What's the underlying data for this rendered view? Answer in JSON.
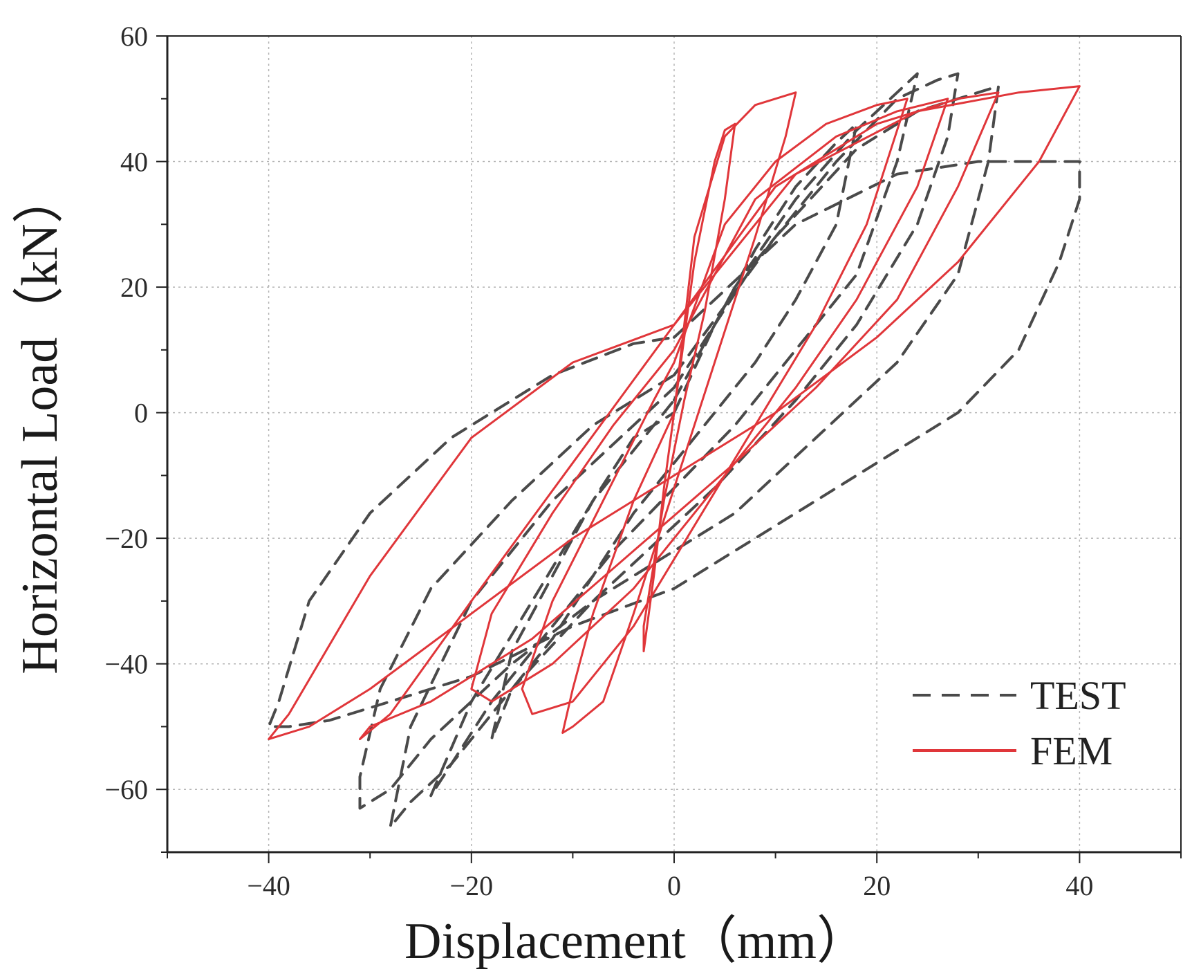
{
  "chart_data": {
    "type": "line",
    "title": "",
    "xlabel": "Displacement（mm）",
    "ylabel": "Horizontal Load（kN）",
    "xlim": [
      -50,
      50
    ],
    "ylim": [
      -70,
      60
    ],
    "xticks": [
      -40,
      -20,
      0,
      20,
      40
    ],
    "yticks": [
      60,
      40,
      20,
      0,
      -20,
      -40,
      -60
    ],
    "xtick_labels": [
      "−40",
      "−20",
      "0",
      "20",
      "40"
    ],
    "ytick_labels": [
      "60",
      "40",
      "20",
      "0",
      "−20",
      "−40",
      "−60"
    ],
    "grid": true,
    "legend_position": "bottom-right",
    "series": [
      {
        "name": "TEST",
        "style": "dashed",
        "color": "#4a4a4a",
        "loops": [
          {
            "x": [
              0,
              4,
              8,
              12,
              16,
              18,
              16,
              12,
              8,
              4,
              0,
              -4,
              -8,
              -12,
              -16,
              -18,
              -16,
              -12,
              -8,
              -4,
              0
            ],
            "y": [
              0,
              14,
              26,
              36,
              43,
              46,
              30,
              18,
              8,
              0,
              -8,
              -16,
              -26,
              -36,
              -44,
              -52,
              -38,
              -26,
              -14,
              -4,
              0
            ]
          },
          {
            "x": [
              0,
              6,
              12,
              18,
              22,
              24,
              22,
              18,
              12,
              6,
              0,
              -6,
              -12,
              -18,
              -22,
              -24,
              -20,
              -14,
              -8,
              0
            ],
            "y": [
              2,
              20,
              34,
              45,
              51,
              54,
              40,
              22,
              10,
              -2,
              -12,
              -22,
              -34,
              -46,
              -56,
              -61,
              -46,
              -30,
              -14,
              2
            ]
          },
          {
            "x": [
              0,
              8,
              16,
              22,
              26,
              28,
              27,
              24,
              18,
              12,
              4,
              0,
              -8,
              -16,
              -22,
              -26,
              -28,
              -26,
              -20,
              -12,
              -4,
              0
            ],
            "y": [
              4,
              24,
              40,
              50,
              53,
              54,
              44,
              30,
              14,
              2,
              -12,
              -18,
              -30,
              -44,
              -56,
              -62,
              -66,
              -50,
              -30,
              -14,
              -2,
              4
            ]
          },
          {
            "x": [
              0,
              10,
              18,
              24,
              28,
              32,
              31,
              28,
              22,
              14,
              6,
              0,
              -8,
              -16,
              -24,
              -28,
              -31,
              -31,
              -29,
              -24,
              -16,
              -8,
              0
            ],
            "y": [
              6,
              28,
              42,
              48,
              50,
              52,
              40,
              22,
              8,
              -4,
              -16,
              -22,
              -30,
              -40,
              -52,
              -60,
              -63,
              -58,
              -44,
              -28,
              -14,
              -2,
              6
            ]
          },
          {
            "x": [
              0,
              12,
              22,
              30,
              36,
              40,
              40,
              38,
              34,
              28,
              20,
              10,
              0,
              -10,
              -20,
              -28,
              -34,
              -38,
              -40,
              -39,
              -36,
              -30,
              -22,
              -12,
              -4,
              0
            ],
            "y": [
              12,
              30,
              38,
              40,
              40,
              40,
              34,
              24,
              10,
              0,
              -8,
              -18,
              -28,
              -34,
              -42,
              -46,
              -49,
              -50,
              -50,
              -46,
              -30,
              -16,
              -4,
              6,
              11,
              12
            ]
          }
        ]
      },
      {
        "name": "FEM",
        "style": "solid",
        "color": "#e0363a",
        "loops": [
          {
            "x": [
              0,
              2,
              4,
              5,
              6,
              5,
              3,
              1,
              0,
              -1,
              -2,
              -3,
              -3,
              -2,
              -1,
              0
            ],
            "y": [
              0,
              24,
              40,
              45,
              46,
              34,
              16,
              2,
              -6,
              -14,
              -24,
              -34,
              -38,
              -26,
              -12,
              0
            ]
          },
          {
            "x": [
              0,
              2,
              5,
              8,
              12,
              11,
              8,
              4,
              0,
              -4,
              -7,
              -10,
              -11,
              -10,
              -8,
              -4,
              0
            ],
            "y": [
              0,
              28,
              44,
              49,
              51,
              44,
              28,
              8,
              -12,
              -32,
              -46,
              -50,
              -51,
              -44,
              -32,
              -14,
              0
            ]
          },
          {
            "x": [
              0,
              5,
              10,
              15,
              20,
              23,
              19,
              14,
              8,
              2,
              -4,
              -10,
              -14,
              -15,
              -12,
              -7,
              -2,
              0
            ],
            "y": [
              8,
              30,
              40,
              46,
              49,
              50,
              30,
              14,
              -2,
              -18,
              -34,
              -46,
              -48,
              -44,
              -30,
              -14,
              2,
              8
            ]
          },
          {
            "x": [
              0,
              8,
              16,
              22,
              27,
              24,
              18,
              12,
              4,
              -4,
              -12,
              -18,
              -20,
              -18,
              -12,
              -6,
              0
            ],
            "y": [
              10,
              34,
              44,
              48,
              50,
              36,
              18,
              4,
              -12,
              -28,
              -40,
              -46,
              -44,
              -32,
              -16,
              -2,
              10
            ]
          },
          {
            "x": [
              0,
              10,
              20,
              28,
              32,
              28,
              22,
              14,
              6,
              -4,
              -14,
              -24,
              -30,
              -31,
              -28,
              -20,
              -10,
              0
            ],
            "y": [
              14,
              36,
              46,
              50,
              51,
              36,
              18,
              4,
              -8,
              -22,
              -36,
              -46,
              -50,
              -52,
              -48,
              -30,
              -8,
              14
            ]
          },
          {
            "x": [
              0,
              12,
              24,
              34,
              40,
              36,
              28,
              20,
              10,
              0,
              -10,
              -20,
              -30,
              -36,
              -40,
              -38,
              -30,
              -20,
              -10,
              0
            ],
            "y": [
              14,
              38,
              48,
              51,
              52,
              40,
              24,
              12,
              0,
              -10,
              -20,
              -32,
              -44,
              -50,
              -52,
              -48,
              -26,
              -4,
              8,
              14
            ]
          }
        ]
      }
    ]
  }
}
